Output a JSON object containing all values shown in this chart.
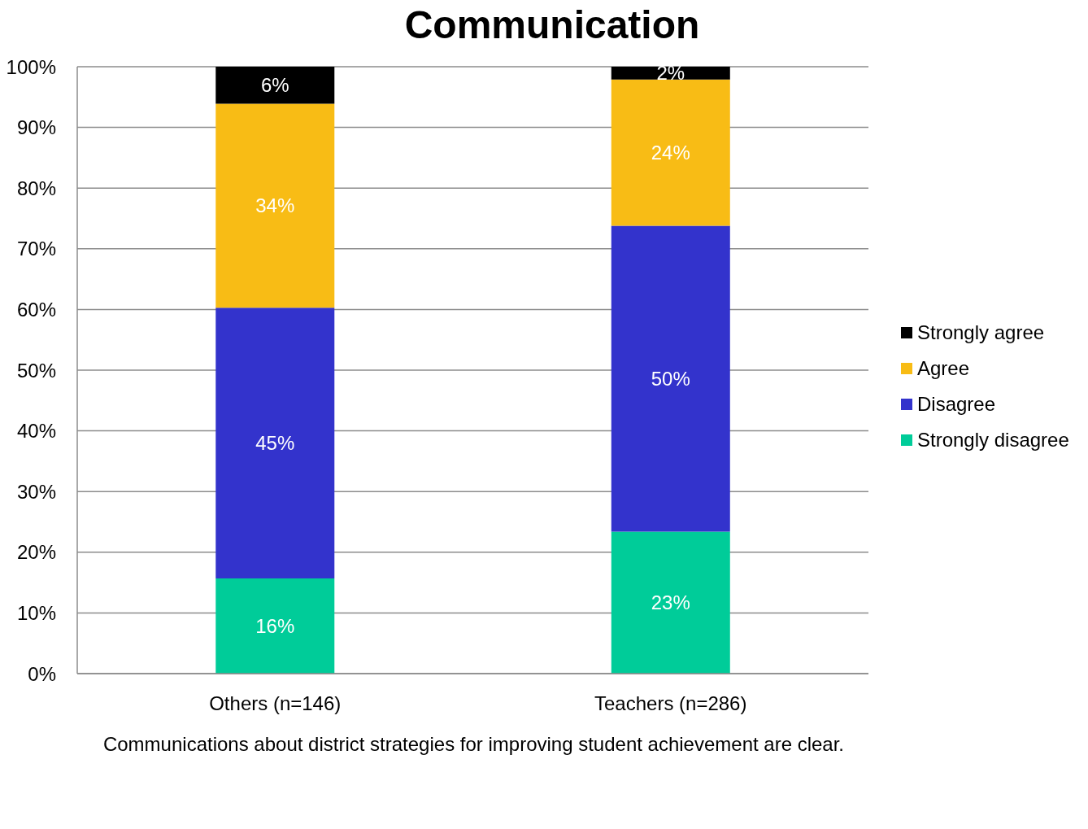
{
  "chart_data": {
    "type": "bar",
    "title": "Communication",
    "xlabel": "Communications about district strategies for improving student achievement are clear.",
    "categories": [
      "Others (n=146)",
      "Teachers (n=286)"
    ],
    "stacked": true,
    "series": [
      {
        "name": "Strongly disagree",
        "color": "#00cc99",
        "values": [
          15.7,
          23.4
        ],
        "value_labels": [
          "16%",
          "23%"
        ]
      },
      {
        "name": "Disagree",
        "color": "#3333cc",
        "values": [
          44.6,
          50.4
        ],
        "value_labels": [
          "45%",
          "50%"
        ]
      },
      {
        "name": "Agree",
        "color": "#f8bc15",
        "values": [
          33.6,
          24.1
        ],
        "value_labels": [
          "34%",
          "24%"
        ]
      },
      {
        "name": "Strongly agree",
        "color": "#000000",
        "values": [
          6.1,
          2.1
        ],
        "value_labels": [
          "6%",
          "2%"
        ]
      }
    ],
    "ylim": [
      0,
      100
    ],
    "yticks": [
      {
        "value": 0,
        "label": "0%"
      },
      {
        "value": 10,
        "label": "10%"
      },
      {
        "value": 20,
        "label": "20%"
      },
      {
        "value": 30,
        "label": "30%"
      },
      {
        "value": 40,
        "label": "40%"
      },
      {
        "value": 50,
        "label": "50%"
      },
      {
        "value": 60,
        "label": "60%"
      },
      {
        "value": 70,
        "label": "70%"
      },
      {
        "value": 80,
        "label": "80%"
      },
      {
        "value": 90,
        "label": "90%"
      },
      {
        "value": 100,
        "label": "100%"
      }
    ],
    "grid": "y",
    "legend": "right"
  }
}
